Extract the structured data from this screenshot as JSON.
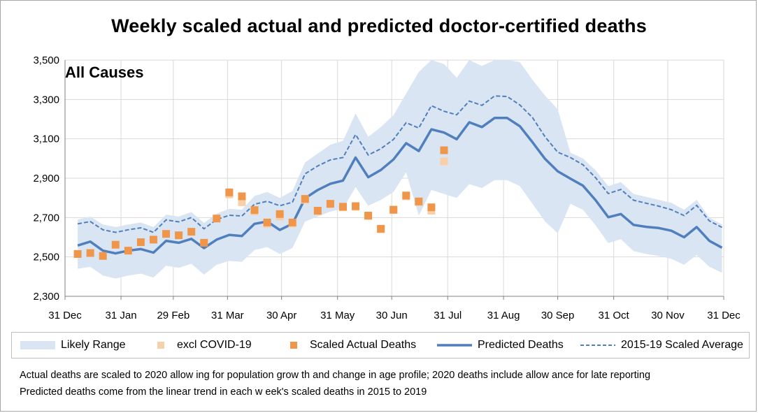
{
  "title": "Weekly scaled actual and predicted doctor-certified deaths",
  "colors": {
    "likely_range": "#dae5f3",
    "excl_covid": "#f8cfa9",
    "scaled_actual": "#f0964a",
    "predicted": "#4f7fbd",
    "average": "#4f7fbd",
    "grid": "#d9d9d9"
  },
  "legend": {
    "likely_range": "Likely Range",
    "excl_covid": "excl COVID-19",
    "scaled_actual": "Scaled Actual Deaths",
    "predicted": "Predicted Deaths",
    "average": "2015-19 Scaled Average"
  },
  "notes": {
    "line1": "Actual deaths are scaled to 2020 allow ing for population grow th and change in age profile; 2020 deaths include allow ance for late reporting",
    "line2": "Predicted deaths come from the linear trend in each w eek's scaled deaths in 2015 to 2019"
  },
  "chart_data": {
    "type": "line",
    "title": "Weekly scaled actual and predicted doctor-certified deaths",
    "panel_label": "All Causes",
    "xlabel": "",
    "ylabel": "",
    "x_tick_labels": [
      "31 Dec",
      "31 Jan",
      "29 Feb",
      "31 Mar",
      "30 Apr",
      "31 May",
      "30 Jun",
      "31 Jul",
      "31 Aug",
      "30 Sep",
      "31 Oct",
      "30 Nov",
      "31 Dec"
    ],
    "x_tick_weeks": [
      0,
      4.43,
      8.57,
      12.86,
      17.14,
      21.57,
      25.86,
      30.29,
      34.71,
      39.0,
      43.43,
      47.71,
      52.14
    ],
    "ylim": [
      2300,
      3500
    ],
    "y_ticks": [
      2300,
      2500,
      2700,
      2900,
      3100,
      3300,
      3500
    ],
    "grid": true,
    "legend_position": "bottom",
    "weeks": [
      1,
      2,
      3,
      4,
      5,
      6,
      7,
      8,
      9,
      10,
      11,
      12,
      13,
      14,
      15,
      16,
      17,
      18,
      19,
      20,
      21,
      22,
      23,
      24,
      25,
      26,
      27,
      28,
      29,
      30,
      31,
      32,
      33,
      34,
      35,
      36,
      37,
      38,
      39,
      40,
      41,
      42,
      43,
      44,
      45,
      46,
      47,
      48,
      49,
      50,
      51,
      52
    ],
    "series": [
      {
        "name": "Predicted Deaths",
        "kind": "line",
        "values": [
          2558,
          2578,
          2532,
          2518,
          2532,
          2540,
          2522,
          2582,
          2572,
          2592,
          2545,
          2588,
          2612,
          2606,
          2668,
          2680,
          2637,
          2668,
          2798,
          2840,
          2872,
          2888,
          3005,
          2905,
          2942,
          2995,
          3078,
          3038,
          3148,
          3132,
          3098,
          3184,
          3160,
          3206,
          3206,
          3164,
          3083,
          2998,
          2935,
          2898,
          2862,
          2788,
          2702,
          2718,
          2663,
          2653,
          2647,
          2633,
          2600,
          2652,
          2582,
          2547
        ]
      },
      {
        "name": "2015-19 Scaled Average",
        "kind": "dashed",
        "values": [
          2668,
          2680,
          2638,
          2625,
          2638,
          2648,
          2625,
          2688,
          2678,
          2700,
          2643,
          2690,
          2712,
          2708,
          2768,
          2783,
          2760,
          2778,
          2922,
          2962,
          2993,
          3005,
          3122,
          3018,
          3050,
          3097,
          3182,
          3155,
          3268,
          3240,
          3222,
          3292,
          3270,
          3318,
          3315,
          3272,
          3208,
          3110,
          3032,
          3005,
          2968,
          2902,
          2822,
          2843,
          2788,
          2773,
          2758,
          2740,
          2710,
          2762,
          2683,
          2650
        ]
      },
      {
        "name": "Likely Range (upper)",
        "kind": "band_upper",
        "values": [
          2690,
          2705,
          2665,
          2652,
          2665,
          2675,
          2652,
          2715,
          2705,
          2728,
          2673,
          2720,
          2745,
          2740,
          2810,
          2830,
          2800,
          2835,
          2980,
          3025,
          3070,
          3090,
          3230,
          3110,
          3160,
          3220,
          3330,
          3440,
          3500,
          3480,
          3410,
          3500,
          3470,
          3510,
          3520,
          3490,
          3400,
          3320,
          3250,
          3030,
          3000,
          2940,
          2860,
          2880,
          2820,
          2805,
          2790,
          2775,
          2740,
          2790,
          2700,
          2665
        ]
      },
      {
        "name": "Likely Range (lower)",
        "kind": "band_lower",
        "values": [
          2440,
          2450,
          2405,
          2390,
          2405,
          2415,
          2395,
          2455,
          2445,
          2465,
          2410,
          2460,
          2480,
          2475,
          2535,
          2550,
          2515,
          2545,
          2680,
          2705,
          2730,
          2745,
          2855,
          2760,
          2790,
          2830,
          2930,
          2710,
          2840,
          2820,
          2800,
          2870,
          2850,
          2890,
          2890,
          2860,
          2770,
          2680,
          2620,
          2770,
          2740,
          2660,
          2570,
          2590,
          2530,
          2515,
          2505,
          2490,
          2460,
          2510,
          2450,
          2420
        ]
      },
      {
        "name": "Scaled Actual Deaths",
        "kind": "markers",
        "weeks": [
          1,
          2,
          3,
          4,
          5,
          6,
          7,
          8,
          9,
          10,
          11,
          12,
          13,
          14,
          15,
          16,
          17,
          18,
          19,
          20,
          21,
          22,
          23,
          24,
          25,
          26,
          27,
          28,
          29,
          30
        ],
        "values": [
          2515,
          2520,
          2505,
          2562,
          2532,
          2575,
          2588,
          2617,
          2610,
          2628,
          2572,
          2695,
          2828,
          2808,
          2738,
          2675,
          2718,
          2675,
          2795,
          2735,
          2770,
          2755,
          2758,
          2710,
          2643,
          2740,
          2812,
          2782,
          2752,
          3042
        ]
      },
      {
        "name": "excl COVID-19",
        "kind": "markers",
        "weeks": [
          13,
          14,
          15,
          16,
          17,
          18,
          19,
          20,
          21,
          22,
          23,
          24,
          25,
          26,
          27,
          28,
          29,
          30
        ],
        "values": [
          2818,
          2778,
          2732,
          2668,
          2705,
          2670,
          2790,
          2732,
          2768,
          2752,
          2755,
          2708,
          2641,
          2738,
          2808,
          2778,
          2735,
          2985
        ]
      }
    ]
  }
}
